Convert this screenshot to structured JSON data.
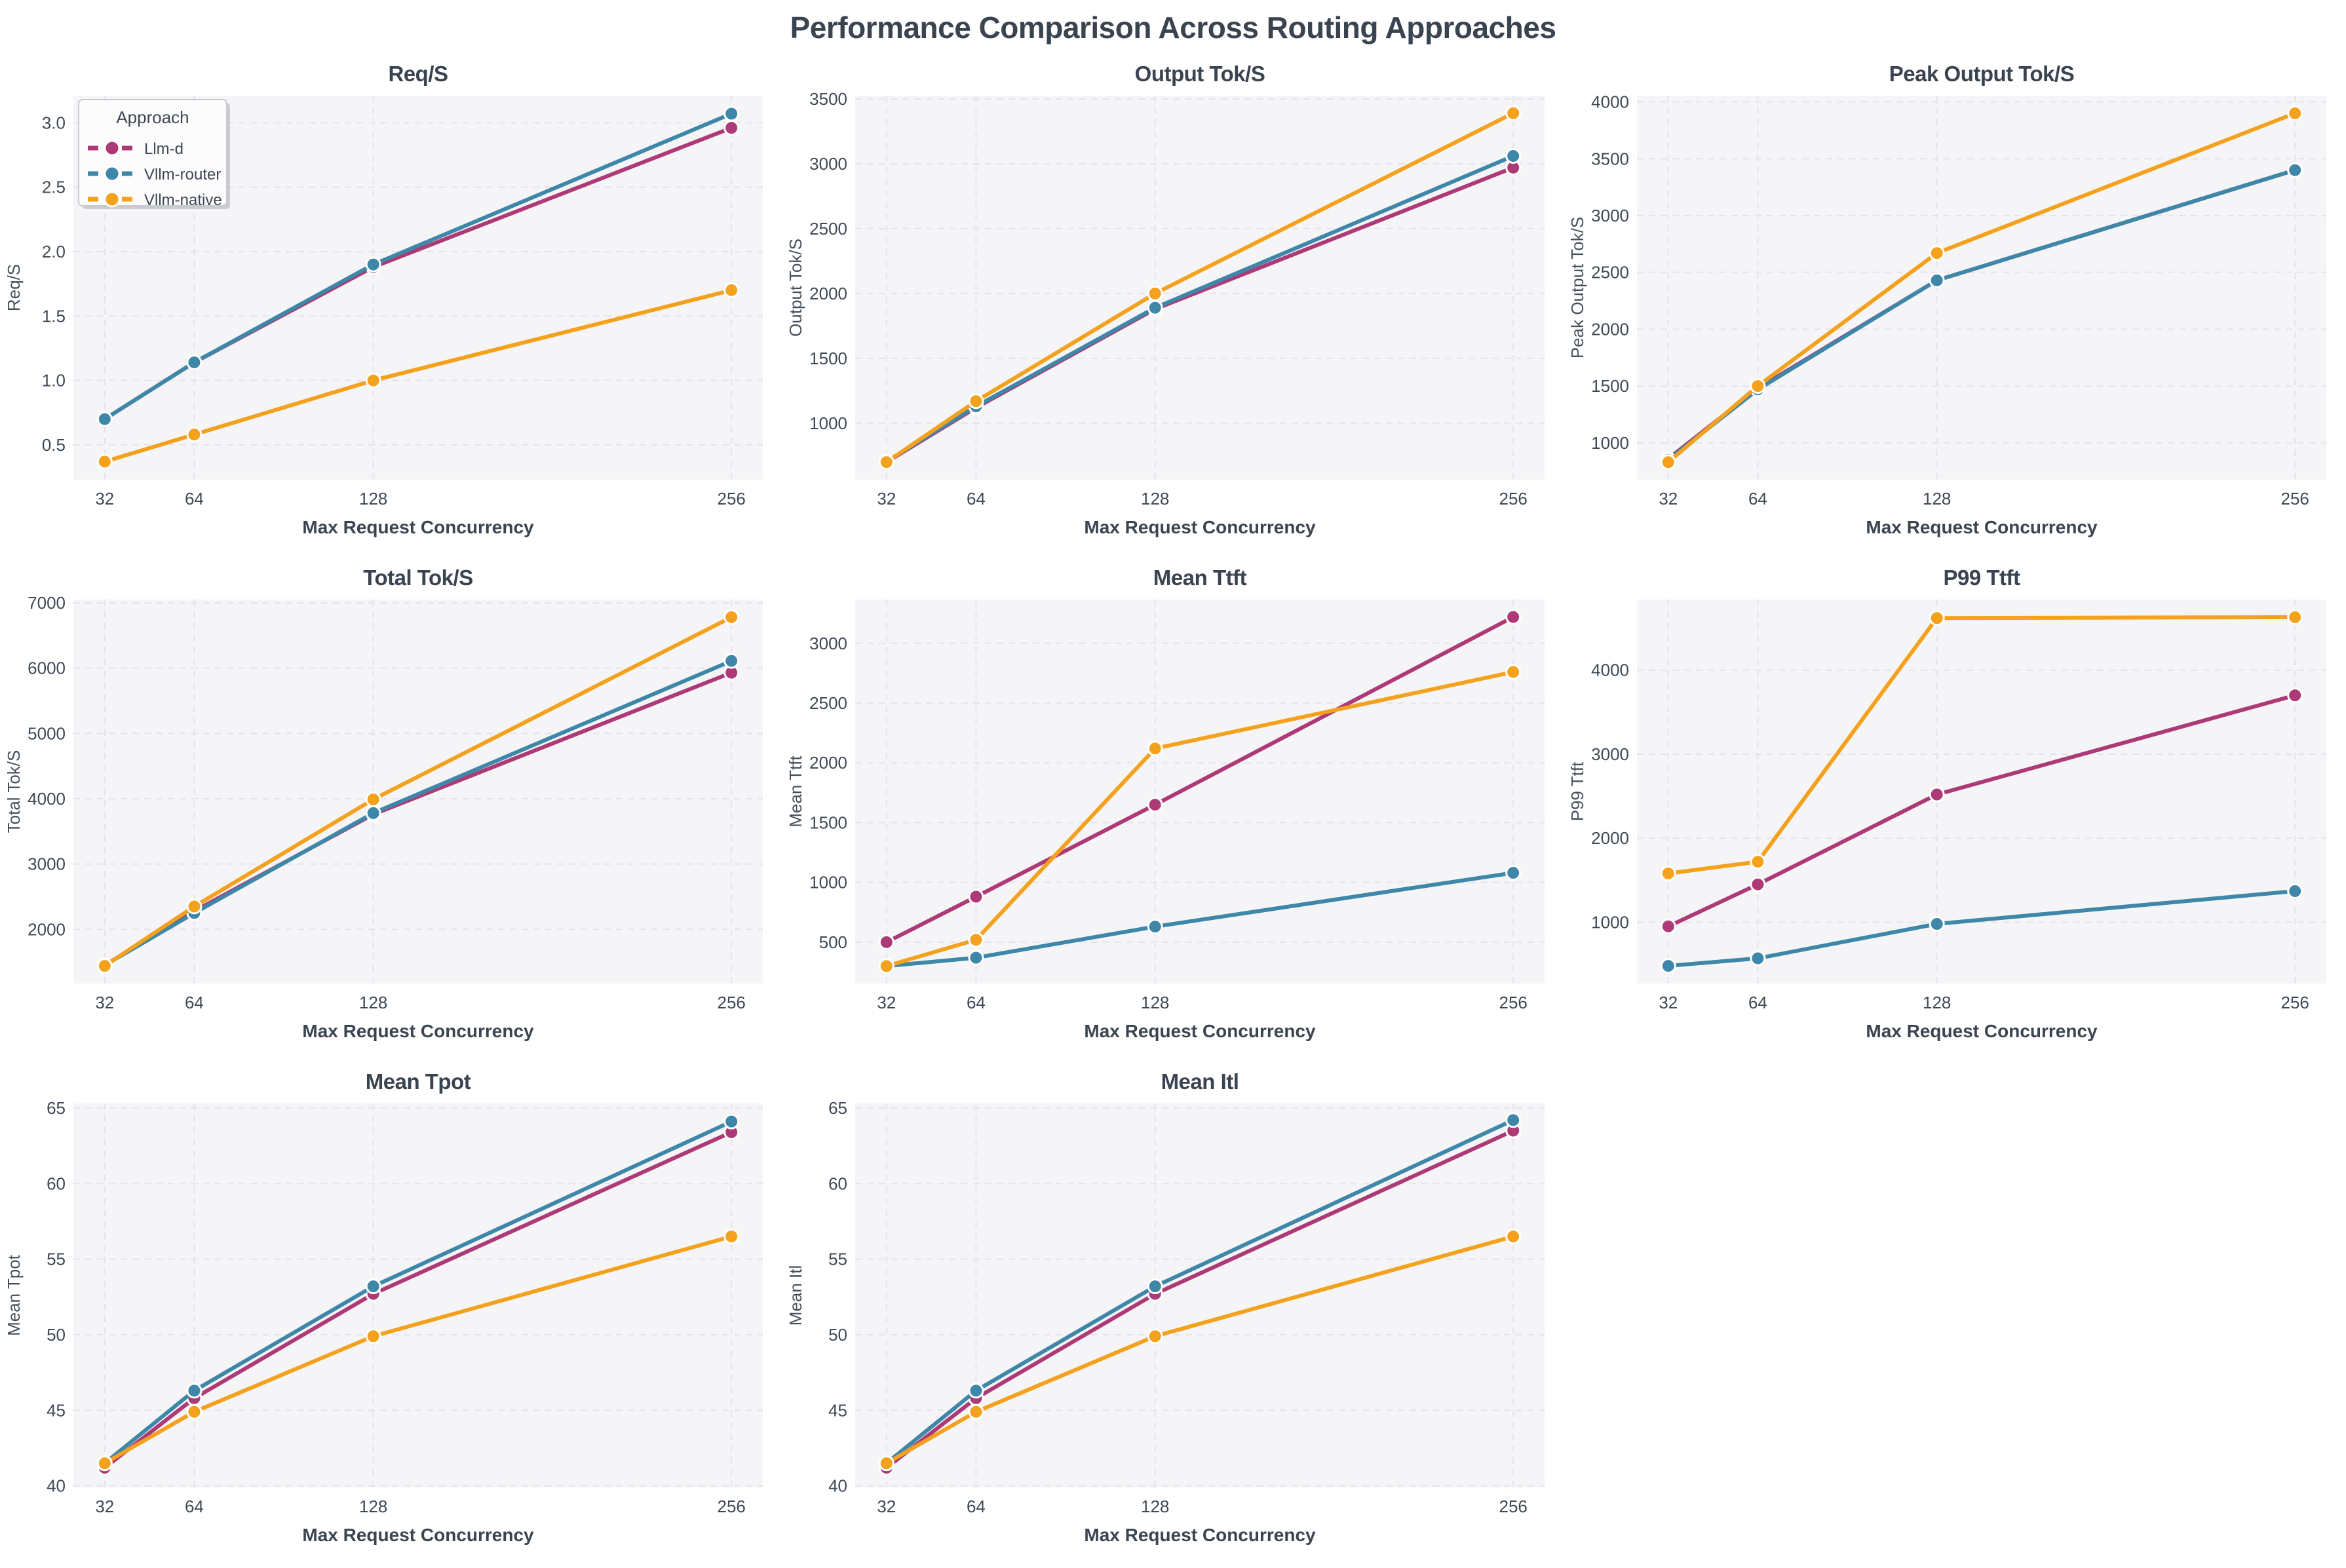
{
  "figure": {
    "title": "Performance Comparison Across Routing Approaches"
  },
  "legend": {
    "title": "Approach",
    "entries": [
      {
        "label": "Llm-d",
        "color": "#ad3a76"
      },
      {
        "label": "Vllm-router",
        "color": "#3e87a8"
      },
      {
        "label": "Vllm-native",
        "color": "#f4a11d"
      }
    ]
  },
  "axes": {
    "xlabel": "Max Request Concurrency",
    "xticks": [
      32,
      64,
      128,
      256
    ],
    "xtick_labels": [
      "32",
      "64",
      "128",
      "256"
    ],
    "xlim": [
      20.8,
      267.2
    ]
  },
  "style": {
    "plot_bg": "#f5f5f7",
    "grid_color": "#e3e3ea",
    "tick_color": "#3f4955",
    "axis_label_color": "#46505c",
    "xlabel_color": "#3b4450",
    "marker_edge": "#ffffff"
  },
  "chart_data": [
    {
      "type": "line",
      "title": "Req/S",
      "ylabel": "Req/S",
      "xlabel": "Max Request Concurrency",
      "x": [
        32,
        64,
        128,
        256
      ],
      "ylim": [
        0.23,
        3.21
      ],
      "yticks": [
        0.5,
        1.0,
        1.5,
        2.0,
        2.5,
        3.0
      ],
      "ytick_labels": [
        "0.5",
        "1.0",
        "1.5",
        "2.0",
        "2.5",
        "3.0"
      ],
      "legend": true,
      "series": [
        {
          "name": "Llm-d",
          "color": "#ad3a76",
          "values": [
            0.7,
            1.14,
            1.88,
            2.96
          ]
        },
        {
          "name": "Vllm-router",
          "color": "#3e87a8",
          "values": [
            0.7,
            1.14,
            1.9,
            3.07
          ]
        },
        {
          "name": "Vllm-native",
          "color": "#f4a11d",
          "values": [
            0.37,
            0.58,
            1.0,
            1.7
          ]
        }
      ]
    },
    {
      "type": "line",
      "title": "Output Tok/S",
      "ylabel": "Output Tok/S",
      "xlabel": "Max Request Concurrency",
      "x": [
        32,
        64,
        128,
        256
      ],
      "ylim": [
        565,
        3525
      ],
      "yticks": [
        1000,
        1500,
        2000,
        2500,
        3000,
        3500
      ],
      "ytick_labels": [
        "1000",
        "1500",
        "2000",
        "2500",
        "3000",
        "3500"
      ],
      "legend": false,
      "series": [
        {
          "name": "Llm-d",
          "color": "#ad3a76",
          "values": [
            700,
            1120,
            1880,
            2970
          ]
        },
        {
          "name": "Vllm-router",
          "color": "#3e87a8",
          "values": [
            705,
            1130,
            1890,
            3060
          ]
        },
        {
          "name": "Vllm-native",
          "color": "#f4a11d",
          "values": [
            700,
            1170,
            2000,
            3390
          ]
        }
      ]
    },
    {
      "type": "line",
      "title": "Peak Output Tok/S",
      "ylabel": "Peak Output Tok/S",
      "xlabel": "Max Request Concurrency",
      "x": [
        32,
        64,
        128,
        256
      ],
      "ylim": [
        676,
        4055
      ],
      "yticks": [
        1000,
        1500,
        2000,
        2500,
        3000,
        3500,
        4000
      ],
      "ytick_labels": [
        "1000",
        "1500",
        "2000",
        "2500",
        "3000",
        "3500",
        "4000"
      ],
      "legend": false,
      "series": [
        {
          "name": "Llm-d",
          "color": "#ad3a76",
          "values": [
            860,
            1480,
            2430,
            3400
          ]
        },
        {
          "name": "Vllm-router",
          "color": "#3e87a8",
          "values": [
            850,
            1470,
            2430,
            3400
          ]
        },
        {
          "name": "Vllm-native",
          "color": "#f4a11d",
          "values": [
            830,
            1500,
            2670,
            3900
          ]
        }
      ]
    },
    {
      "type": "line",
      "title": "Total Tok/S",
      "ylabel": "Total Tok/S",
      "xlabel": "Max Request Concurrency",
      "x": [
        32,
        64,
        128,
        256
      ],
      "ylim": [
        1170,
        7050
      ],
      "yticks": [
        2000,
        3000,
        4000,
        5000,
        6000,
        7000
      ],
      "ytick_labels": [
        "2000",
        "3000",
        "4000",
        "5000",
        "6000",
        "7000"
      ],
      "legend": false,
      "series": [
        {
          "name": "Llm-d",
          "color": "#ad3a76",
          "values": [
            1450,
            2280,
            3760,
            5930
          ]
        },
        {
          "name": "Vllm-router",
          "color": "#3e87a8",
          "values": [
            1450,
            2250,
            3780,
            6110
          ]
        },
        {
          "name": "Vllm-native",
          "color": "#f4a11d",
          "values": [
            1440,
            2350,
            3990,
            6780
          ]
        }
      ]
    },
    {
      "type": "line",
      "title": "Mean Ttft",
      "ylabel": "Mean Ttft",
      "xlabel": "Max Request Concurrency",
      "x": [
        32,
        64,
        128,
        256
      ],
      "ylim": [
        154,
        3366
      ],
      "yticks": [
        500,
        1000,
        1500,
        2000,
        2500,
        3000
      ],
      "ytick_labels": [
        "500",
        "1000",
        "1500",
        "2000",
        "2500",
        "3000"
      ],
      "legend": false,
      "series": [
        {
          "name": "Llm-d",
          "color": "#ad3a76",
          "values": [
            500,
            880,
            1650,
            3220
          ]
        },
        {
          "name": "Vllm-router",
          "color": "#3e87a8",
          "values": [
            300,
            370,
            630,
            1080
          ]
        },
        {
          "name": "Vllm-native",
          "color": "#f4a11d",
          "values": [
            300,
            520,
            2120,
            2760
          ]
        }
      ]
    },
    {
      "type": "line",
      "title": "P99 Ttft",
      "ylabel": "P99 Ttft",
      "xlabel": "Max Request Concurrency",
      "x": [
        32,
        64,
        128,
        256
      ],
      "ylim": [
        270,
        4840
      ],
      "yticks": [
        1000,
        2000,
        3000,
        4000
      ],
      "ytick_labels": [
        "1000",
        "2000",
        "3000",
        "4000"
      ],
      "legend": false,
      "series": [
        {
          "name": "Llm-d",
          "color": "#ad3a76",
          "values": [
            950,
            1450,
            2520,
            3700
          ]
        },
        {
          "name": "Vllm-router",
          "color": "#3e87a8",
          "values": [
            480,
            570,
            980,
            1370
          ]
        },
        {
          "name": "Vllm-native",
          "color": "#f4a11d",
          "values": [
            1580,
            1720,
            4620,
            4630
          ]
        }
      ]
    },
    {
      "type": "line",
      "title": "Mean Tpot",
      "ylabel": "Mean Tpot",
      "xlabel": "Max Request Concurrency",
      "x": [
        32,
        64,
        128,
        256
      ],
      "ylim": [
        39.9,
        65.3
      ],
      "yticks": [
        40,
        45,
        50,
        55,
        60,
        65
      ],
      "ytick_labels": [
        "40",
        "45",
        "50",
        "55",
        "60",
        "65"
      ],
      "legend": false,
      "series": [
        {
          "name": "Llm-d",
          "color": "#ad3a76",
          "values": [
            41.2,
            45.8,
            52.7,
            63.4
          ]
        },
        {
          "name": "Vllm-router",
          "color": "#3e87a8",
          "values": [
            41.5,
            46.3,
            53.2,
            64.1
          ]
        },
        {
          "name": "Vllm-native",
          "color": "#f4a11d",
          "values": [
            41.5,
            44.9,
            49.9,
            56.5
          ]
        }
      ]
    },
    {
      "type": "line",
      "title": "Mean Itl",
      "ylabel": "Mean Itl",
      "xlabel": "Max Request Concurrency",
      "x": [
        32,
        64,
        128,
        256
      ],
      "ylim": [
        39.9,
        65.3
      ],
      "yticks": [
        40,
        45,
        50,
        55,
        60,
        65
      ],
      "ytick_labels": [
        "40",
        "45",
        "50",
        "55",
        "60",
        "65"
      ],
      "legend": false,
      "series": [
        {
          "name": "Llm-d",
          "color": "#ad3a76",
          "values": [
            41.2,
            45.8,
            52.7,
            63.5
          ]
        },
        {
          "name": "Vllm-router",
          "color": "#3e87a8",
          "values": [
            41.5,
            46.3,
            53.2,
            64.2
          ]
        },
        {
          "name": "Vllm-native",
          "color": "#f4a11d",
          "values": [
            41.5,
            44.9,
            49.9,
            56.5
          ]
        }
      ]
    }
  ]
}
